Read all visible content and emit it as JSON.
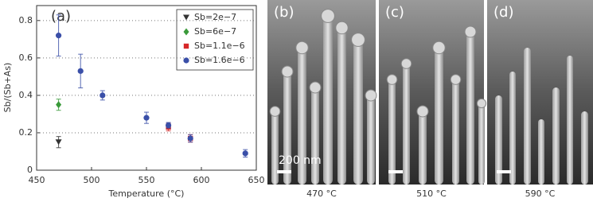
{
  "chart_data": {
    "type": "scatter",
    "panel_label": "(a)",
    "xlabel": "Temperature (°C)",
    "ylabel": "Sb/(Sb+As)",
    "xlim": [
      450,
      650
    ],
    "ylim": [
      0,
      0.88
    ],
    "xticks": [
      450,
      500,
      550,
      600,
      650
    ],
    "yticks": [
      0,
      0.2,
      0.4,
      0.6,
      0.8
    ],
    "grid": true,
    "legend": "upper right",
    "series": [
      {
        "name": "Sb=2e−7",
        "color": "#333333",
        "marker": "triangle-down",
        "x": [
          470
        ],
        "values": [
          0.15
        ],
        "errors": [
          0.03
        ]
      },
      {
        "name": "Sb=6e−7",
        "color": "#3a9a3a",
        "marker": "diamond",
        "x": [
          470
        ],
        "values": [
          0.35
        ],
        "errors": [
          0.03
        ]
      },
      {
        "name": "Sb=1.1e−6",
        "color": "#d62728",
        "marker": "square",
        "x": [
          570,
          590
        ],
        "values": [
          0.23,
          0.17
        ],
        "errors": [
          0.02,
          0.02
        ]
      },
      {
        "name": "Sb=1.6e−6",
        "color": "#3a4fa8",
        "marker": "circle",
        "x": [
          470,
          490,
          510,
          550,
          570,
          590,
          640
        ],
        "values": [
          0.72,
          0.53,
          0.4,
          0.28,
          0.24,
          0.17,
          0.09
        ],
        "errors": [
          0.11,
          0.09,
          0.025,
          0.03,
          0.015,
          0.02,
          0.02
        ]
      }
    ]
  },
  "images": [
    {
      "label": "(b)",
      "caption": "470 °C",
      "scale_bar": "200 nm"
    },
    {
      "label": "(c)",
      "caption": "510 °C"
    },
    {
      "label": "(d)",
      "caption": "590 °C"
    }
  ]
}
